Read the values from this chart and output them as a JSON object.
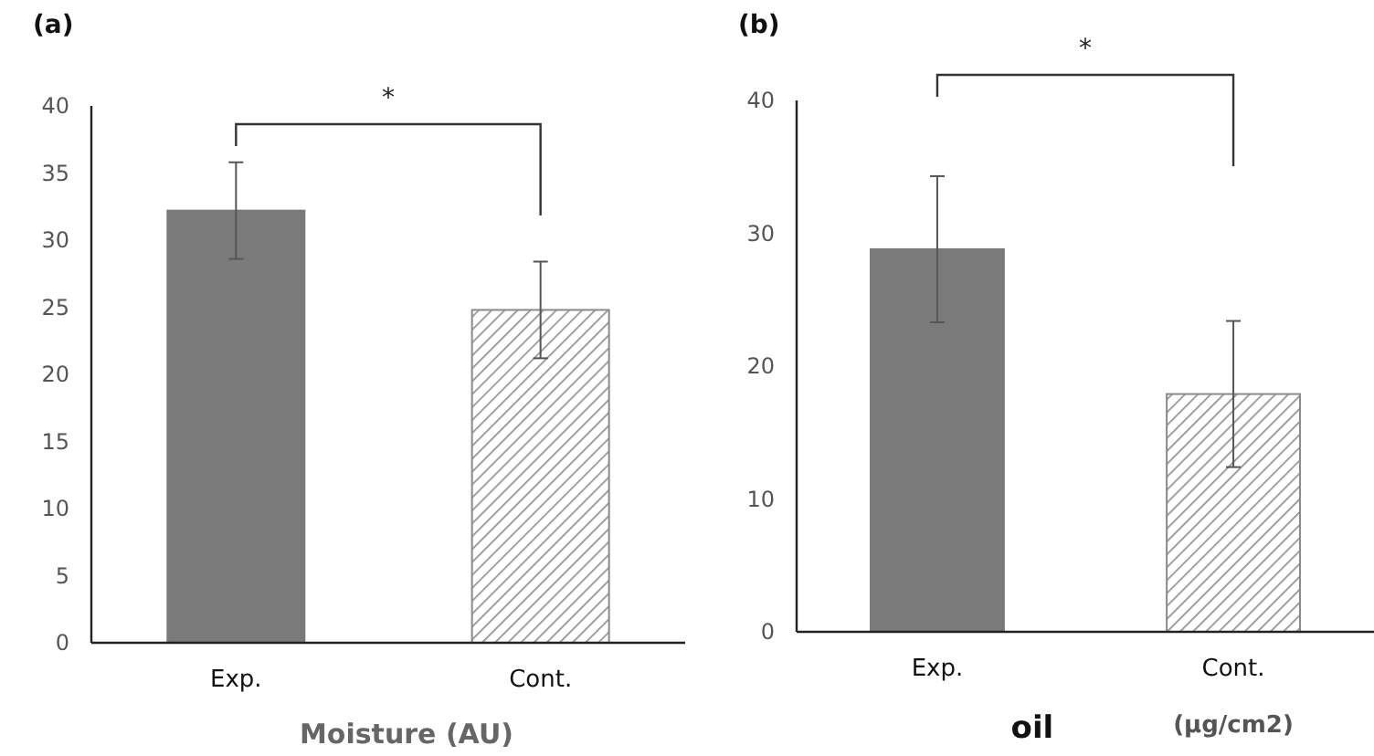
{
  "chart_data": [
    {
      "type": "bar",
      "title": "(a)",
      "xlabel": "Moisture (AU)",
      "categories": [
        "Exp.",
        "Cont."
      ],
      "values": [
        32.2,
        24.8
      ],
      "errors": [
        3.6,
        3.6
      ],
      "colors": [
        "#7a7a7a",
        "#8a8a8a"
      ],
      "ylim": [
        0,
        40
      ],
      "yticks": [
        0,
        5,
        10,
        15,
        20,
        25,
        30,
        35,
        40
      ],
      "grid": false,
      "annotations": [
        "*"
      ]
    },
    {
      "type": "bar",
      "title": "(b)",
      "xlabel": "oil",
      "categories": [
        "Exp.",
        "Cont."
      ],
      "values": [
        28.8,
        17.9
      ],
      "errors": [
        5.5,
        5.5
      ],
      "colors": [
        "#7a7a7a",
        "#8a8a8a"
      ],
      "ylim": [
        0,
        40
      ],
      "yticks": [
        0,
        10,
        20,
        30,
        40
      ],
      "grid": false,
      "annotations": [
        "*",
        "(µg/cm2)"
      ]
    }
  ]
}
